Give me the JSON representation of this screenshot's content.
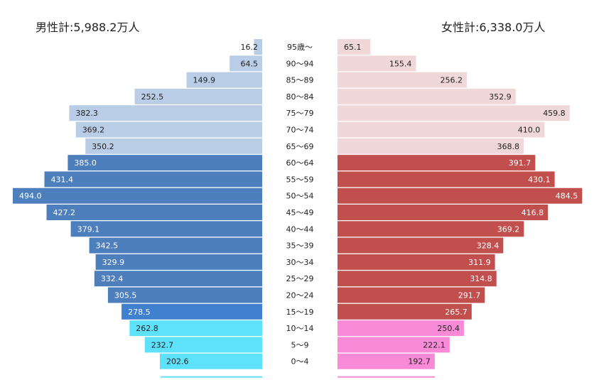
{
  "male_total_label": "男性計:5,988.2万人",
  "female_total_label": "女性計:6,338.0万人",
  "chart_data": {
    "type": "bar",
    "orientation": "horizontal",
    "layout": "population-pyramid",
    "categories": [
      "95歳～",
      "90～94",
      "85～89",
      "80～84",
      "75～79",
      "70～74",
      "65～69",
      "60～64",
      "55～59",
      "50～54",
      "45～49",
      "40～44",
      "35～39",
      "30～34",
      "25～29",
      "20～24",
      "15～19",
      "10～14",
      "5～9",
      "0～4"
    ],
    "series": [
      {
        "values": [
          16.2,
          64.5,
          149.9,
          252.5,
          382.3,
          369.2,
          350.2,
          385.0,
          431.4,
          494.0,
          427.2,
          379.1,
          342.5,
          329.9,
          332.4,
          305.5,
          278.5,
          262.8,
          232.7,
          202.6
        ],
        "labels": [
          "16.2",
          "64.5",
          "149.9",
          "252.5",
          "382.3",
          "369.2",
          "350.2",
          "385.0",
          "431.4",
          "494.0",
          "427.2",
          "379.1",
          "342.5",
          "329.9",
          "332.4",
          "305.5",
          "278.5",
          "262.8",
          "232.7",
          "202.6"
        ],
        "side": "left"
      },
      {
        "values": [
          65.1,
          155.4,
          256.2,
          352.9,
          459.8,
          410.0,
          368.8,
          391.7,
          430.1,
          484.5,
          416.8,
          369.2,
          328.4,
          311.9,
          314.8,
          291.7,
          265.7,
          250.4,
          222.1,
          192.7
        ],
        "labels": [
          "65.1",
          "155.4",
          "256.2",
          "352.9",
          "459.8",
          "410.0",
          "368.8",
          "391.7",
          "430.1",
          "484.5",
          "416.8",
          "369.2",
          "328.4",
          "311.9",
          "314.8",
          "291.7",
          "265.7",
          "250.4",
          "222.1",
          "192.7"
        ],
        "side": "right"
      }
    ],
    "xlim": [
      0,
      494
    ],
    "grid": false,
    "legend": "none",
    "colors": {
      "male_elderly": "#b9cde6",
      "male_working": "#4e7fbd",
      "male_15_19": "#3f80cf",
      "male_young": "#5ee1fb",
      "female_elderly": "#f0d8d8",
      "female_working": "#c04f4d",
      "female_young": "#f98ad8",
      "label_dark": "#222222",
      "label_light": "#ffffff"
    }
  }
}
